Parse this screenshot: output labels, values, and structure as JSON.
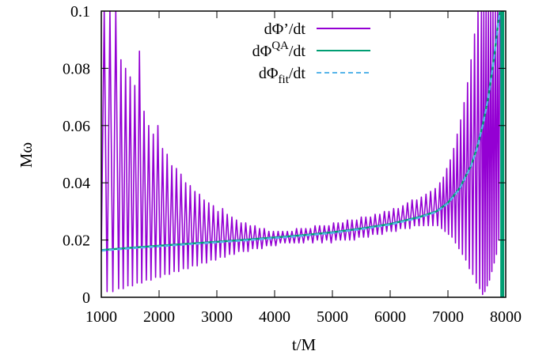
{
  "chart_data": {
    "type": "line",
    "title": "",
    "xlabel": "t/M",
    "ylabel": "Mω",
    "xlim": [
      1000,
      8000
    ],
    "ylim": [
      0,
      0.1
    ],
    "xticks": [
      1000,
      2000,
      3000,
      4000,
      5000,
      6000,
      7000,
      8000
    ],
    "yticks": [
      0,
      0.02,
      0.04,
      0.06,
      0.08,
      0.1
    ],
    "ytick_labels": [
      "0",
      "0.02",
      "0.04",
      "0.06",
      "0.08",
      "0.1"
    ],
    "grid": false,
    "legend_position": "top-center",
    "series": [
      {
        "name": "dΦ’/dt",
        "label_base": "dΦ’/dt",
        "label_sup": "",
        "label_sub": "",
        "label_tail": "",
        "color": "#9400d3",
        "style": "solid",
        "description": "oscillating frequency estimate",
        "points": [
          [
            1000,
            0.016
          ],
          [
            1050,
            0.1
          ],
          [
            1100,
            0.002
          ],
          [
            1150,
            0.1
          ],
          [
            1200,
            0.002
          ],
          [
            1250,
            0.1
          ],
          [
            1300,
            0.003
          ],
          [
            1340,
            0.083
          ],
          [
            1380,
            0.003
          ],
          [
            1420,
            0.08
          ],
          [
            1460,
            0.004
          ],
          [
            1500,
            0.077
          ],
          [
            1540,
            0.004
          ],
          [
            1580,
            0.074
          ],
          [
            1620,
            0.005
          ],
          [
            1660,
            0.086
          ],
          [
            1700,
            0.005
          ],
          [
            1740,
            0.065
          ],
          [
            1780,
            0.006
          ],
          [
            1820,
            0.06
          ],
          [
            1860,
            0.006
          ],
          [
            1900,
            0.057
          ],
          [
            1940,
            0.007
          ],
          [
            1980,
            0.06
          ],
          [
            2020,
            0.007
          ],
          [
            2060,
            0.052
          ],
          [
            2100,
            0.008
          ],
          [
            2140,
            0.05
          ],
          [
            2180,
            0.008
          ],
          [
            2220,
            0.046
          ],
          [
            2260,
            0.009
          ],
          [
            2300,
            0.045
          ],
          [
            2340,
            0.009
          ],
          [
            2380,
            0.043
          ],
          [
            2420,
            0.01
          ],
          [
            2460,
            0.04
          ],
          [
            2500,
            0.01
          ],
          [
            2540,
            0.039
          ],
          [
            2580,
            0.011
          ],
          [
            2620,
            0.037
          ],
          [
            2660,
            0.011
          ],
          [
            2700,
            0.036
          ],
          [
            2740,
            0.012
          ],
          [
            2780,
            0.034
          ],
          [
            2820,
            0.012
          ],
          [
            2860,
            0.033
          ],
          [
            2900,
            0.013
          ],
          [
            2940,
            0.032
          ],
          [
            2980,
            0.013
          ],
          [
            3020,
            0.03
          ],
          [
            3060,
            0.014
          ],
          [
            3100,
            0.031
          ],
          [
            3140,
            0.014
          ],
          [
            3180,
            0.029
          ],
          [
            3220,
            0.015
          ],
          [
            3260,
            0.028
          ],
          [
            3300,
            0.015
          ],
          [
            3340,
            0.027
          ],
          [
            3380,
            0.016
          ],
          [
            3420,
            0.026
          ],
          [
            3460,
            0.016
          ],
          [
            3500,
            0.026
          ],
          [
            3540,
            0.016
          ],
          [
            3580,
            0.025
          ],
          [
            3620,
            0.017
          ],
          [
            3660,
            0.025
          ],
          [
            3700,
            0.017
          ],
          [
            3740,
            0.024
          ],
          [
            3780,
            0.017
          ],
          [
            3820,
            0.024
          ],
          [
            3860,
            0.018
          ],
          [
            3900,
            0.023
          ],
          [
            3940,
            0.018
          ],
          [
            3980,
            0.023
          ],
          [
            4020,
            0.018
          ],
          [
            4060,
            0.023
          ],
          [
            4100,
            0.019
          ],
          [
            4140,
            0.023
          ],
          [
            4180,
            0.019
          ],
          [
            4220,
            0.023
          ],
          [
            4260,
            0.019
          ],
          [
            4300,
            0.023
          ],
          [
            4340,
            0.019
          ],
          [
            4380,
            0.024
          ],
          [
            4420,
            0.019
          ],
          [
            4460,
            0.024
          ],
          [
            4500,
            0.019
          ],
          [
            4540,
            0.024
          ],
          [
            4580,
            0.02
          ],
          [
            4620,
            0.024
          ],
          [
            4660,
            0.019
          ],
          [
            4700,
            0.025
          ],
          [
            4740,
            0.02
          ],
          [
            4780,
            0.025
          ],
          [
            4820,
            0.019
          ],
          [
            4860,
            0.025
          ],
          [
            4900,
            0.02
          ],
          [
            4940,
            0.025
          ],
          [
            4980,
            0.019
          ],
          [
            5020,
            0.026
          ],
          [
            5060,
            0.02
          ],
          [
            5100,
            0.026
          ],
          [
            5140,
            0.02
          ],
          [
            5180,
            0.026
          ],
          [
            5220,
            0.02
          ],
          [
            5260,
            0.027
          ],
          [
            5300,
            0.02
          ],
          [
            5340,
            0.027
          ],
          [
            5380,
            0.02
          ],
          [
            5420,
            0.027
          ],
          [
            5460,
            0.021
          ],
          [
            5500,
            0.028
          ],
          [
            5540,
            0.021
          ],
          [
            5580,
            0.028
          ],
          [
            5620,
            0.021
          ],
          [
            5660,
            0.028
          ],
          [
            5700,
            0.022
          ],
          [
            5740,
            0.029
          ],
          [
            5780,
            0.022
          ],
          [
            5820,
            0.029
          ],
          [
            5860,
            0.022
          ],
          [
            5900,
            0.03
          ],
          [
            5940,
            0.023
          ],
          [
            5980,
            0.03
          ],
          [
            6020,
            0.023
          ],
          [
            6060,
            0.031
          ],
          [
            6100,
            0.023
          ],
          [
            6140,
            0.031
          ],
          [
            6180,
            0.024
          ],
          [
            6220,
            0.032
          ],
          [
            6260,
            0.024
          ],
          [
            6300,
            0.033
          ],
          [
            6340,
            0.024
          ],
          [
            6380,
            0.034
          ],
          [
            6420,
            0.025
          ],
          [
            6460,
            0.034
          ],
          [
            6500,
            0.025
          ],
          [
            6540,
            0.035
          ],
          [
            6580,
            0.025
          ],
          [
            6620,
            0.036
          ],
          [
            6660,
            0.025
          ],
          [
            6700,
            0.037
          ],
          [
            6740,
            0.025
          ],
          [
            6780,
            0.038
          ],
          [
            6820,
            0.025
          ],
          [
            6860,
            0.04
          ],
          [
            6890,
            0.024
          ],
          [
            6920,
            0.042
          ],
          [
            6950,
            0.023
          ],
          [
            6980,
            0.045
          ],
          [
            7010,
            0.022
          ],
          [
            7040,
            0.048
          ],
          [
            7070,
            0.021
          ],
          [
            7100,
            0.052
          ],
          [
            7130,
            0.019
          ],
          [
            7160,
            0.057
          ],
          [
            7190,
            0.017
          ],
          [
            7220,
            0.062
          ],
          [
            7250,
            0.015
          ],
          [
            7280,
            0.068
          ],
          [
            7310,
            0.013
          ],
          [
            7340,
            0.075
          ],
          [
            7370,
            0.01
          ],
          [
            7400,
            0.083
          ],
          [
            7430,
            0.008
          ],
          [
            7460,
            0.092
          ],
          [
            7490,
            0.005
          ],
          [
            7520,
            0.1
          ],
          [
            7550,
            0.003
          ],
          [
            7580,
            0.1
          ],
          [
            7600,
            0.001
          ],
          [
            7620,
            0.1
          ],
          [
            7640,
            0.002
          ],
          [
            7660,
            0.1
          ],
          [
            7680,
            0.004
          ],
          [
            7700,
            0.1
          ],
          [
            7720,
            0.006
          ],
          [
            7740,
            0.1
          ],
          [
            7760,
            0.009
          ],
          [
            7780,
            0.1
          ],
          [
            7800,
            0.012
          ],
          [
            7820,
            0.1
          ],
          [
            7840,
            0.015
          ],
          [
            7860,
            0.1
          ],
          [
            7880,
            0.02
          ],
          [
            7900,
            0.1
          ],
          [
            7915,
            0.1
          ]
        ]
      },
      {
        "name": "dΦ^QA/dt",
        "label_base": "dΦ",
        "label_sup": "QA",
        "label_sub": "",
        "label_tail": "/dt",
        "color": "#009e73",
        "style": "solid",
        "description": "smooth quasi-adiabatic frequency",
        "points": [
          [
            1000,
            0.0165
          ],
          [
            1500,
            0.0173
          ],
          [
            2000,
            0.018
          ],
          [
            2500,
            0.0187
          ],
          [
            3000,
            0.0194
          ],
          [
            3500,
            0.0201
          ],
          [
            4000,
            0.0209
          ],
          [
            4500,
            0.0217
          ],
          [
            5000,
            0.0227
          ],
          [
            5500,
            0.024
          ],
          [
            6000,
            0.0256
          ],
          [
            6500,
            0.028
          ],
          [
            6800,
            0.03
          ],
          [
            7000,
            0.033
          ],
          [
            7200,
            0.038
          ],
          [
            7400,
            0.046
          ],
          [
            7500,
            0.052
          ],
          [
            7600,
            0.06
          ],
          [
            7700,
            0.07
          ],
          [
            7800,
            0.084
          ],
          [
            7870,
            0.096
          ],
          [
            7900,
            0.1
          ]
        ],
        "vertical_bar_at": 7940
      },
      {
        "name": "dΦ_fit/dt",
        "label_base": "dΦ",
        "label_sup": "",
        "label_sub": "fit",
        "label_tail": "/dt",
        "color": "#56b4e9",
        "style": "dashed",
        "description": "fitted frequency",
        "points": [
          [
            1000,
            0.0163
          ],
          [
            1500,
            0.0171
          ],
          [
            2000,
            0.0178
          ],
          [
            2500,
            0.0185
          ],
          [
            3000,
            0.0192
          ],
          [
            3500,
            0.0199
          ],
          [
            4000,
            0.0207
          ],
          [
            4500,
            0.0215
          ],
          [
            5000,
            0.0225
          ],
          [
            5500,
            0.0238
          ],
          [
            6000,
            0.0254
          ],
          [
            6500,
            0.0278
          ],
          [
            6800,
            0.0298
          ],
          [
            7000,
            0.0328
          ],
          [
            7200,
            0.0378
          ],
          [
            7400,
            0.0458
          ],
          [
            7500,
            0.0518
          ],
          [
            7600,
            0.0598
          ],
          [
            7700,
            0.0698
          ],
          [
            7800,
            0.0838
          ],
          [
            7870,
            0.0958
          ],
          [
            7900,
            0.1
          ]
        ]
      }
    ]
  }
}
